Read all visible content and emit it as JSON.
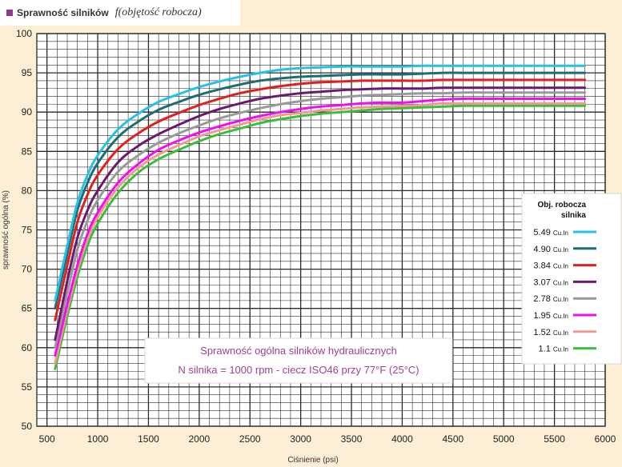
{
  "header": {
    "title": "Sprawność silników",
    "subtitle": "f(objętość robocza)"
  },
  "colors": {
    "background": "#fcefd6",
    "plot_background": "#ffffff",
    "grid": "#2a2a2a",
    "annotation_text": "#a0408f",
    "header_square": "#8b3a8e"
  },
  "annotation": {
    "line1": "Sprawność ogólna silników hydraulicznych",
    "line2": "N silnika = 1000 rpm - ciecz ISO46 przy 77°F (25°C)"
  },
  "chart_data": {
    "type": "line",
    "xlabel": "Ciśnienie  (psi)",
    "ylabel": "sprawność ogólna  (%)",
    "xlim": [
      400,
      6000
    ],
    "ylim": [
      50,
      100
    ],
    "xticks": [
      500,
      1000,
      1500,
      2000,
      2500,
      3000,
      3500,
      4000,
      4500,
      5000,
      5500,
      6000
    ],
    "yticks": [
      50,
      55,
      60,
      65,
      70,
      75,
      80,
      85,
      90,
      95,
      100
    ],
    "grid": true,
    "legend_position": "right",
    "legend_title_line1": "Obj. robocza",
    "legend_title_line2": "silnika",
    "x": [
      580,
      700,
      800,
      900,
      1000,
      1200,
      1400,
      1600,
      1800,
      2000,
      2200,
      2400,
      2600,
      2800,
      3000,
      3200,
      3400,
      3600,
      3800,
      4000,
      4200,
      4400,
      4600,
      4800,
      5000,
      5200,
      5400,
      5600,
      5800
    ],
    "series": [
      {
        "name": "5.49",
        "unit": "Cu.In",
        "color": "#29c0e6",
        "values": [
          66,
          73,
          78.5,
          82,
          84.5,
          87.8,
          89.8,
          91.3,
          92.3,
          93.2,
          93.9,
          94.5,
          95,
          95.4,
          95.6,
          95.7,
          95.8,
          95.8,
          95.8,
          95.8,
          95.9,
          95.9,
          95.9,
          95.9,
          95.9,
          95.9,
          95.9,
          95.9,
          95.9
        ]
      },
      {
        "name": "4.90",
        "unit": "Cu.In",
        "color": "#1d6e74",
        "values": [
          65,
          72,
          77.5,
          81,
          83.5,
          86.8,
          88.8,
          90.3,
          91.3,
          92.2,
          92.9,
          93.5,
          94,
          94.3,
          94.5,
          94.6,
          94.7,
          94.8,
          94.8,
          94.8,
          94.9,
          95,
          95,
          95,
          95,
          95,
          95,
          95,
          95
        ]
      },
      {
        "name": "3.84",
        "unit": "Cu.In",
        "color": "#e0201e",
        "values": [
          63.5,
          70.5,
          76,
          79.5,
          82,
          85.3,
          87.3,
          88.8,
          89.9,
          90.9,
          91.7,
          92.4,
          92.9,
          93.3,
          93.6,
          93.8,
          93.9,
          94,
          94,
          94,
          94,
          94.1,
          94.1,
          94.1,
          94.1,
          94.1,
          94.1,
          94.1,
          94.1
        ]
      },
      {
        "name": "3.07",
        "unit": "Cu.In",
        "color": "#6a1a6e",
        "values": [
          61,
          68.5,
          74,
          77.5,
          80,
          83.6,
          85.7,
          87.2,
          88.4,
          89.5,
          90.4,
          91.1,
          91.7,
          92.1,
          92.4,
          92.6,
          92.8,
          92.9,
          93,
          93,
          93,
          93.1,
          93.1,
          93.1,
          93.1,
          93.1,
          93.1,
          93.1,
          93.1
        ]
      },
      {
        "name": "2.78",
        "unit": "Cu.In",
        "color": "#999999",
        "values": [
          60,
          67,
          72.5,
          76.2,
          78.8,
          82.4,
          84.5,
          86.1,
          87.3,
          88.3,
          89.2,
          89.9,
          90.5,
          91,
          91.4,
          91.7,
          91.9,
          92.1,
          92.2,
          92.3,
          92.4,
          92.4,
          92.5,
          92.5,
          92.5,
          92.5,
          92.5,
          92.5,
          92.5
        ]
      },
      {
        "name": "1.95",
        "unit": "Cu.In",
        "color": "#ee11ee",
        "values": [
          59,
          65.5,
          70.5,
          74.5,
          77.2,
          81,
          83.4,
          85.2,
          86.4,
          87.4,
          88.2,
          88.9,
          89.5,
          90,
          90.4,
          90.7,
          90.9,
          91.1,
          91.2,
          91.2,
          91.4,
          91.6,
          91.7,
          91.7,
          91.7,
          91.7,
          91.7,
          91.7,
          91.7
        ]
      },
      {
        "name": "1.52",
        "unit": "Cu.In",
        "color": "#f09a92",
        "values": [
          58,
          64.8,
          69.8,
          73.8,
          76.6,
          80.4,
          82.9,
          84.6,
          85.8,
          86.9,
          87.7,
          88.4,
          89.1,
          89.6,
          89.9,
          90.2,
          90.4,
          90.6,
          90.7,
          90.8,
          90.9,
          91.1,
          91.1,
          91.1,
          91.1,
          91.1,
          91.1,
          91.1,
          91.1
        ]
      },
      {
        "name": "1.1",
        "unit": "Cu.In",
        "color": "#3dbd3d",
        "values": [
          57.3,
          64,
          69,
          73,
          75.8,
          79.7,
          82.3,
          84,
          85.2,
          86.3,
          87.2,
          87.9,
          88.6,
          89.1,
          89.5,
          89.8,
          90,
          90.2,
          90.4,
          90.5,
          90.6,
          90.7,
          90.8,
          90.8,
          90.8,
          90.8,
          90.8,
          90.8,
          90.8
        ]
      }
    ]
  }
}
